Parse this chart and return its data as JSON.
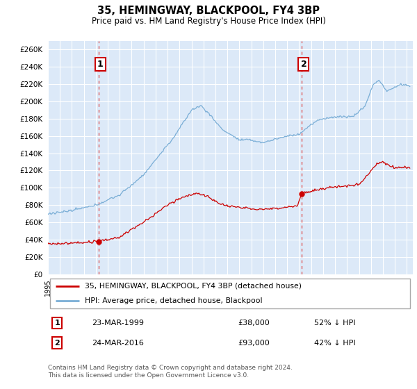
{
  "title": "35, HEMINGWAY, BLACKPOOL, FY4 3BP",
  "subtitle": "Price paid vs. HM Land Registry's House Price Index (HPI)",
  "ylim": [
    0,
    270000
  ],
  "yticks": [
    0,
    20000,
    40000,
    60000,
    80000,
    100000,
    120000,
    140000,
    160000,
    180000,
    200000,
    220000,
    240000,
    260000
  ],
  "bg_color": "#dce9f8",
  "grid_color": "#ffffff",
  "red_line_color": "#cc0000",
  "blue_line_color": "#7aaed6",
  "marker1_date": 1999.22,
  "marker1_price": 38000,
  "marker2_date": 2016.22,
  "marker2_price": 93000,
  "legend_label1": "35, HEMINGWAY, BLACKPOOL, FY4 3BP (detached house)",
  "legend_label2": "HPI: Average price, detached house, Blackpool",
  "vline_color": "#e06060",
  "footer": "Contains HM Land Registry data © Crown copyright and database right 2024.\nThis data is licensed under the Open Government Licence v3.0."
}
